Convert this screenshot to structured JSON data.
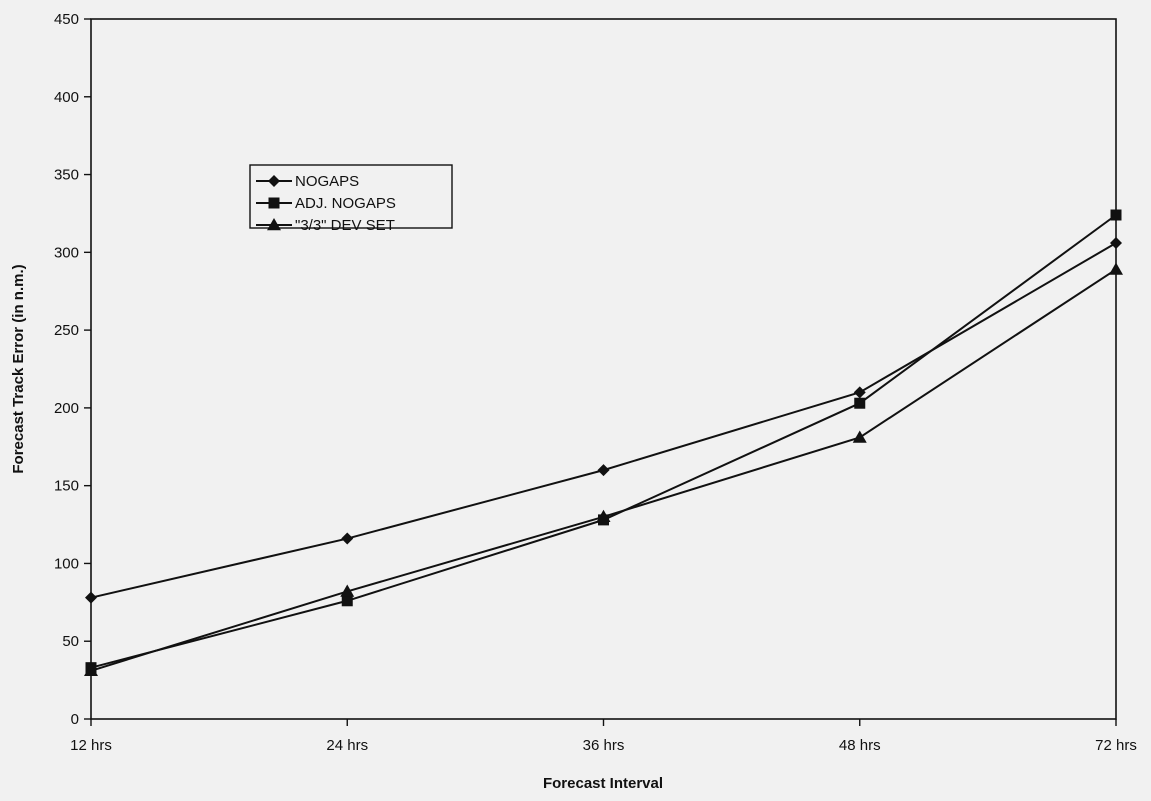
{
  "chart_data": {
    "type": "line",
    "title": "",
    "xlabel": "Forecast Interval",
    "ylabel": "Forecast Track Error (in n.m.)",
    "categories": [
      "12 hrs",
      "24 hrs",
      "36 hrs",
      "48 hrs",
      "72 hrs"
    ],
    "ylim": [
      0,
      450
    ],
    "yticks": [
      0,
      50,
      100,
      150,
      200,
      250,
      300,
      350,
      400,
      450
    ],
    "grid": false,
    "legend_position": "upper-left",
    "series": [
      {
        "name": "NOGAPS",
        "marker": "diamond",
        "color": "#111111",
        "values": [
          78,
          116,
          160,
          210,
          306
        ]
      },
      {
        "name": "ADJ. NOGAPS",
        "marker": "square",
        "color": "#111111",
        "values": [
          33,
          76,
          128,
          203,
          324
        ]
      },
      {
        "name": "\"3/3\" DEV SET",
        "marker": "triangle",
        "color": "#111111",
        "values": [
          31,
          82,
          130,
          181,
          289
        ]
      }
    ]
  }
}
